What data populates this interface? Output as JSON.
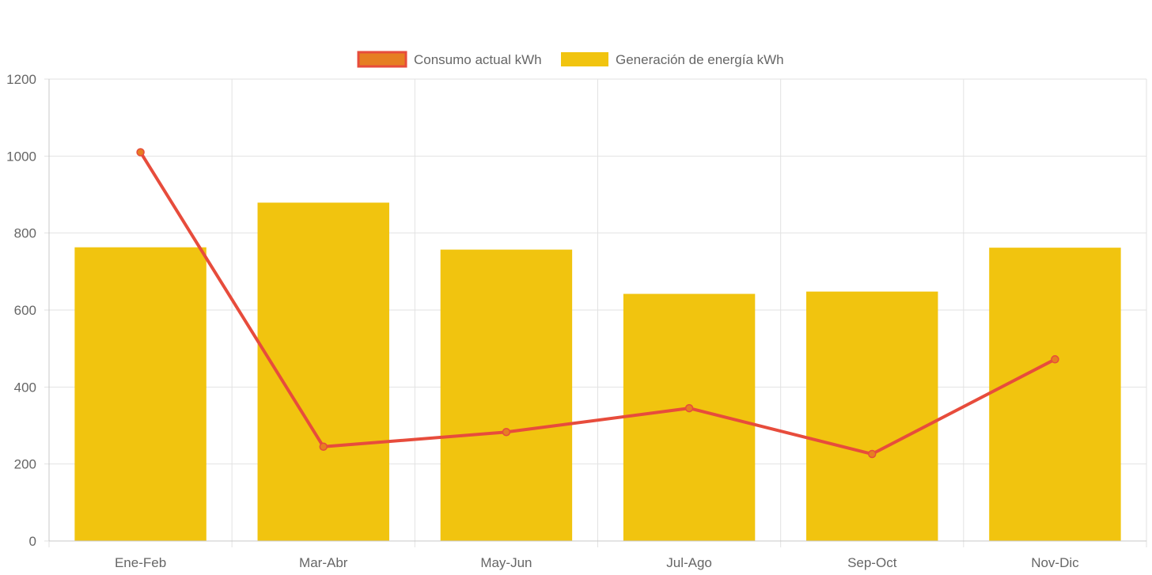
{
  "chart_data": {
    "type": "bar",
    "categories": [
      "Ene-Feb",
      "Mar-Abr",
      "May-Jun",
      "Jul-Ago",
      "Sep-Oct",
      "Nov-Dic"
    ],
    "series": [
      {
        "name": "Generación de energía kWh",
        "type": "bar",
        "values": [
          763,
          879,
          757,
          642,
          648,
          762
        ],
        "color": "#f1c40f"
      },
      {
        "name": "Consumo actual kWh",
        "type": "line",
        "values": [
          1010,
          245,
          283,
          345,
          226,
          472
        ],
        "color": "#e74c3c",
        "point_color": "#e67e22"
      }
    ],
    "legend": {
      "placement": "top",
      "order": [
        "Consumo actual kWh",
        "Generación de energía kWh"
      ]
    },
    "yticks": [
      0,
      200,
      400,
      600,
      800,
      1000,
      1200
    ],
    "ylim": [
      0,
      1200
    ],
    "grid": true
  }
}
